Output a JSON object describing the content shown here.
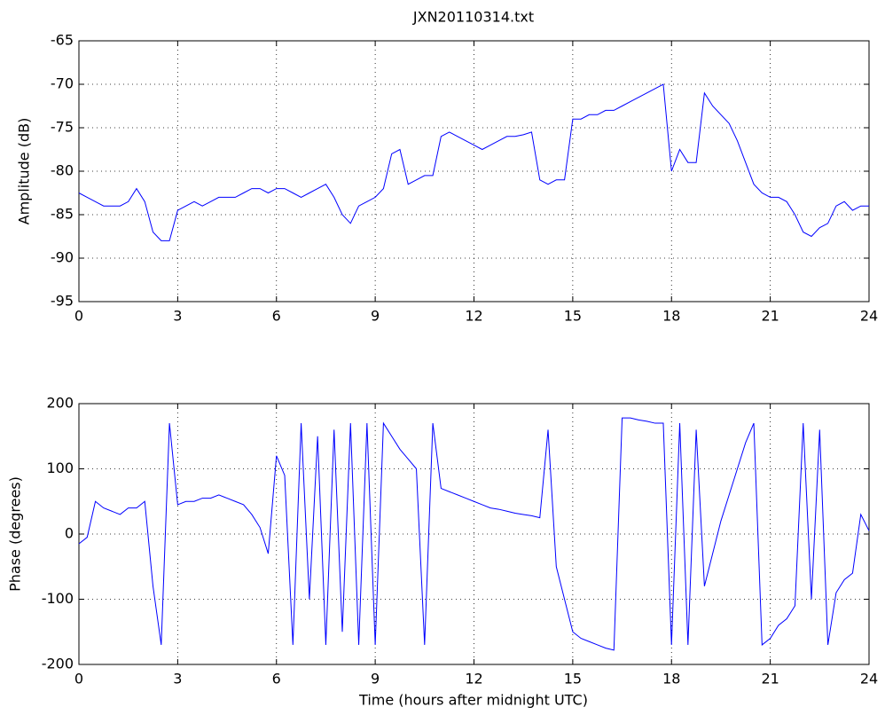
{
  "chart_data": [
    {
      "type": "line",
      "title": "JXN20110314.txt",
      "y_label": "Amplitude (dB)",
      "color": "#0000ff",
      "grid": true,
      "x": [
        0,
        0.25,
        0.5,
        0.75,
        1,
        1.25,
        1.5,
        1.75,
        2,
        2.25,
        2.5,
        2.75,
        3,
        3.25,
        3.5,
        3.75,
        4,
        4.25,
        4.5,
        4.75,
        5,
        5.25,
        5.5,
        5.75,
        6,
        6.25,
        6.5,
        6.75,
        7,
        7.25,
        7.5,
        7.75,
        8,
        8.25,
        8.5,
        8.75,
        9,
        9.25,
        9.5,
        9.75,
        10,
        10.25,
        10.5,
        10.75,
        11,
        11.25,
        11.5,
        11.75,
        12,
        12.25,
        12.5,
        12.75,
        13,
        13.25,
        13.5,
        13.75,
        14,
        14.25,
        14.5,
        14.75,
        15,
        15.25,
        15.5,
        15.75,
        16,
        16.25,
        16.5,
        16.75,
        17,
        17.25,
        17.5,
        17.75,
        18,
        18.25,
        18.5,
        18.75,
        19,
        19.25,
        19.5,
        19.75,
        20,
        20.25,
        20.5,
        20.75,
        21,
        21.25,
        21.5,
        21.75,
        22,
        22.25,
        22.5,
        22.75,
        23,
        23.25,
        23.5,
        23.75,
        24
      ],
      "values": [
        -82.5,
        -83,
        -83.5,
        -84,
        -84,
        -84,
        -83.5,
        -82,
        -83.5,
        -87,
        -88,
        -88,
        -84.5,
        -84,
        -83.5,
        -84,
        -83.5,
        -83,
        -83,
        -83,
        -82.5,
        -82,
        -82,
        -82.5,
        -82,
        -82,
        -82.5,
        -83,
        -82.5,
        -82,
        -81.5,
        -83,
        -85,
        -86,
        -84,
        -83.5,
        -83,
        -82,
        -78,
        -77.5,
        -81.5,
        -81,
        -80.5,
        -80.5,
        -76,
        -75.5,
        -76,
        -76.5,
        -77,
        -77.5,
        -77,
        -76.5,
        -76,
        -76,
        -75.8,
        -75.5,
        -81,
        -81.5,
        -81,
        -81,
        -74,
        -74,
        -73.5,
        -73.5,
        -73,
        -73,
        -72.5,
        -72,
        -71.5,
        -71,
        -70.5,
        -70,
        -80,
        -77.5,
        -79,
        -79,
        -71,
        -72.5,
        -73.5,
        -74.5,
        -76.5,
        -79,
        -81.5,
        -82.5,
        -83,
        -83,
        -83.5,
        -85,
        -87,
        -87.5,
        -86.5,
        -86,
        -84,
        -83.5,
        -84.5,
        -84,
        -84
      ],
      "xlim": [
        0,
        24
      ],
      "xticks": [
        0,
        3,
        6,
        9,
        12,
        15,
        18,
        21,
        24
      ],
      "ylim": [
        -95,
        -65
      ],
      "yticks": [
        -95,
        -90,
        -85,
        -80,
        -75,
        -70,
        -65
      ]
    },
    {
      "type": "line",
      "y_label": "Phase (degrees)",
      "x_label": "Time (hours after midnight UTC)",
      "color": "#0000ff",
      "grid": true,
      "x": [
        0,
        0.25,
        0.5,
        0.75,
        1,
        1.25,
        1.5,
        1.75,
        2,
        2.25,
        2.5,
        2.75,
        3,
        3.25,
        3.5,
        3.75,
        4,
        4.25,
        4.5,
        4.75,
        5,
        5.25,
        5.5,
        5.75,
        6,
        6.25,
        6.5,
        6.75,
        7,
        7.25,
        7.5,
        7.75,
        8,
        8.25,
        8.5,
        8.75,
        9,
        9.25,
        9.5,
        9.75,
        10,
        10.25,
        10.5,
        10.75,
        11,
        11.25,
        11.5,
        11.75,
        12,
        12.25,
        12.5,
        12.75,
        13,
        13.25,
        13.5,
        13.75,
        14,
        14.25,
        14.5,
        14.75,
        15,
        15.25,
        15.5,
        15.75,
        16,
        16.25,
        16.5,
        16.75,
        17,
        17.25,
        17.5,
        17.75,
        18,
        18.25,
        18.5,
        18.75,
        19,
        19.25,
        19.5,
        19.75,
        20,
        20.25,
        20.5,
        20.75,
        21,
        21.25,
        21.5,
        21.75,
        22,
        22.25,
        22.5,
        22.75,
        23,
        23.25,
        23.5,
        23.75,
        24
      ],
      "values": [
        -15,
        -5,
        50,
        40,
        35,
        30,
        40,
        40,
        50,
        -80,
        -170,
        170,
        45,
        50,
        50,
        55,
        55,
        60,
        55,
        50,
        45,
        30,
        10,
        -30,
        120,
        90,
        -170,
        170,
        -100,
        150,
        -170,
        160,
        -150,
        170,
        -170,
        170,
        -170,
        170,
        150,
        130,
        115,
        100,
        -170,
        170,
        70,
        65,
        60,
        55,
        50,
        45,
        40,
        38,
        35,
        32,
        30,
        28,
        25,
        160,
        -50,
        -100,
        -150,
        -160,
        -165,
        -170,
        -175,
        -178,
        178,
        178,
        175,
        173,
        170,
        170,
        -170,
        170,
        -170,
        160,
        -80,
        -30,
        20,
        60,
        100,
        140,
        170,
        -170,
        -160,
        -140,
        -130,
        -110,
        170,
        -100,
        160,
        -170,
        -90,
        -70,
        -60,
        30,
        5
      ],
      "xlim": [
        0,
        24
      ],
      "xticks": [
        0,
        3,
        6,
        9,
        12,
        15,
        18,
        21,
        24
      ],
      "ylim": [
        -200,
        200
      ],
      "yticks": [
        -200,
        -100,
        0,
        100,
        200
      ]
    }
  ]
}
